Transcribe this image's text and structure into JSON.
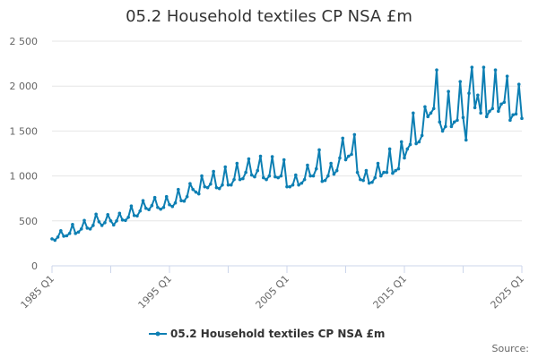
{
  "chart_data": {
    "type": "line",
    "title": "05.2 Household textiles CP NSA £m",
    "xlabel": "",
    "ylabel": "",
    "x_tick_labels": [
      "1985 Q1",
      "1995 Q1",
      "2005 Q1",
      "2015 Q1",
      "2025 Q1"
    ],
    "y_tick_labels": [
      "0",
      "500",
      "1 000",
      "1 500",
      "2 000",
      "2 500"
    ],
    "y_ticks": [
      0,
      500,
      1000,
      1500,
      2000,
      2500
    ],
    "ylim": [
      0,
      2500
    ],
    "x_start": "1985 Q1",
    "grid": true,
    "legend": "bottom-center",
    "credit": "Source:",
    "color": "#0d7fb3",
    "series": [
      {
        "name": "05.2 Household textiles CP NSA £m",
        "values": [
          300,
          285,
          320,
          390,
          330,
          335,
          360,
          460,
          360,
          375,
          410,
          505,
          420,
          410,
          450,
          575,
          490,
          450,
          480,
          570,
          500,
          455,
          500,
          585,
          510,
          505,
          540,
          665,
          560,
          555,
          610,
          725,
          640,
          625,
          670,
          760,
          650,
          630,
          650,
          770,
          680,
          660,
          700,
          850,
          725,
          720,
          770,
          915,
          850,
          820,
          800,
          1000,
          880,
          870,
          910,
          1050,
          870,
          860,
          900,
          1100,
          900,
          900,
          960,
          1140,
          960,
          970,
          1040,
          1190,
          1010,
          990,
          1060,
          1220,
          980,
          960,
          1000,
          1215,
          990,
          980,
          1000,
          1180,
          880,
          880,
          900,
          1010,
          900,
          920,
          960,
          1120,
          1000,
          1000,
          1080,
          1290,
          940,
          950,
          1000,
          1140,
          1020,
          1060,
          1200,
          1420,
          1180,
          1220,
          1240,
          1460,
          1040,
          960,
          950,
          1060,
          920,
          930,
          980,
          1140,
          1000,
          1040,
          1040,
          1300,
          1030,
          1060,
          1080,
          1380,
          1200,
          1300,
          1350,
          1700,
          1360,
          1380,
          1450,
          1770,
          1660,
          1700,
          1750,
          2180,
          1600,
          1500,
          1550,
          1940,
          1550,
          1600,
          1620,
          2050,
          1650,
          1400,
          1920,
          2210,
          1760,
          1900,
          1700,
          2210,
          1660,
          1720,
          1750,
          2180,
          1720,
          1800,
          1820,
          2110,
          1620,
          1680,
          1690,
          2020,
          1640
        ]
      }
    ]
  }
}
